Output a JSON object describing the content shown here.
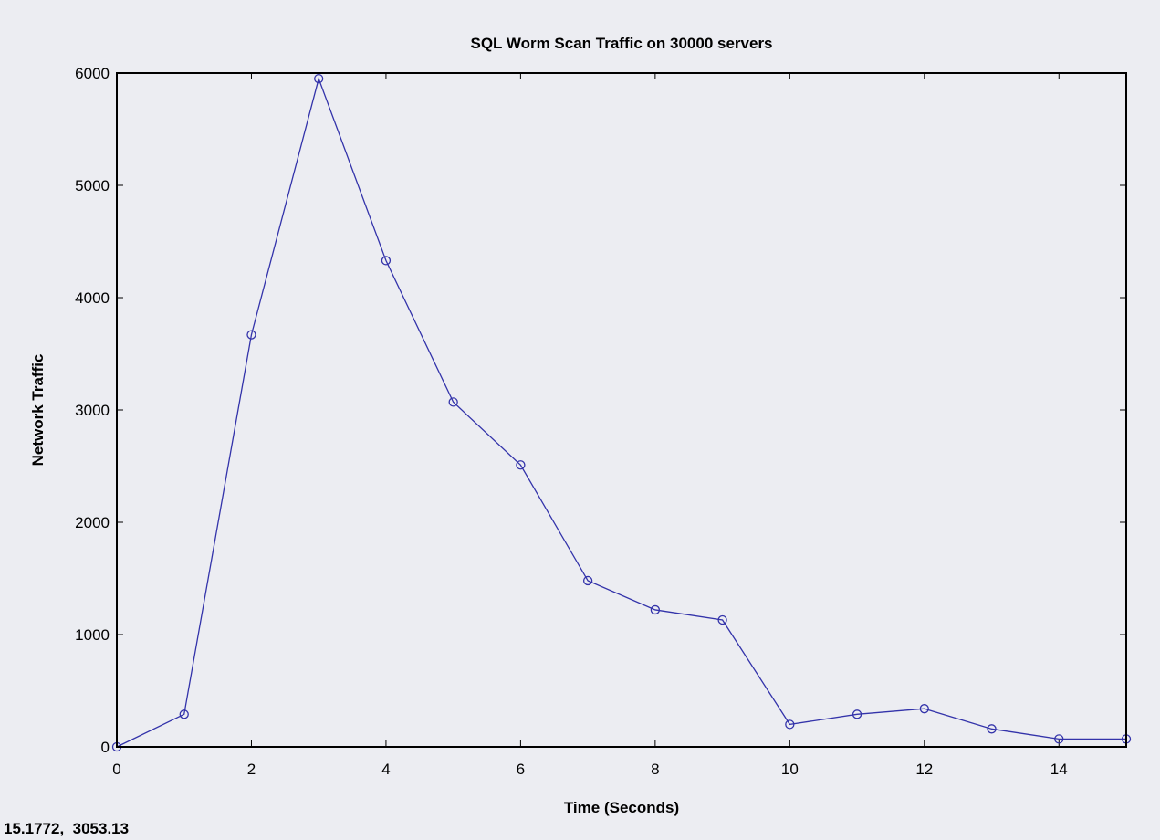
{
  "chart_data": {
    "type": "line",
    "title": "SQL Worm Scan Traffic on 30000 servers",
    "xlabel": "Time (Seconds)",
    "ylabel": "Network Traffic",
    "xlim": [
      0,
      15
    ],
    "ylim": [
      0,
      6000
    ],
    "xticks": [
      0,
      2,
      4,
      6,
      8,
      10,
      12,
      14
    ],
    "yticks": [
      0,
      1000,
      2000,
      3000,
      4000,
      5000,
      6000
    ],
    "grid": false,
    "series": [
      {
        "color": "#3333aa",
        "marker": "circle",
        "x": [
          0,
          1,
          2,
          3,
          4,
          5,
          6,
          7,
          8,
          9,
          10,
          11,
          12,
          13,
          14,
          15
        ],
        "y": [
          0,
          290,
          3670,
          5950,
          4330,
          3070,
          2510,
          1480,
          1220,
          1130,
          200,
          290,
          340,
          160,
          70,
          70
        ]
      }
    ]
  },
  "cursor_readout": "15.1772,  3053.13"
}
